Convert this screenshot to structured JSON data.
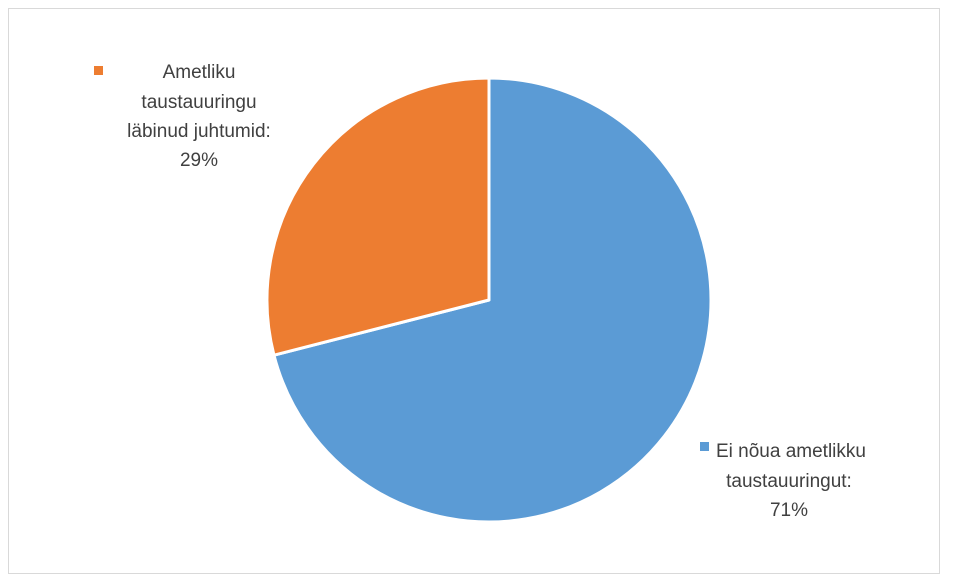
{
  "chart_data": {
    "type": "pie",
    "title": "",
    "slices": [
      {
        "name": "Ei nõua ametlikku taustauuringut",
        "value": 71,
        "color": "#5b9bd5",
        "label_lines": [
          "Ei nõua ametlikku",
          "taustauuringut:",
          "71%"
        ]
      },
      {
        "name": "Ametliku taustauuringu läbinud juhtumid",
        "value": 29,
        "color": "#ed7d31",
        "label_lines": [
          "Ametliku",
          "taustauuringu",
          "läbinud juhtumid:",
          "29%"
        ]
      }
    ]
  }
}
